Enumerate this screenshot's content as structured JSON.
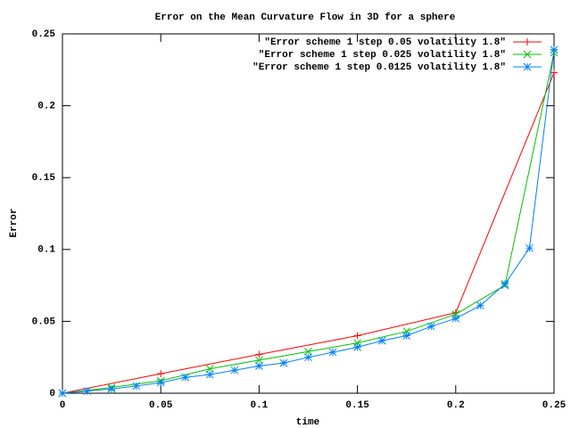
{
  "chart_data": {
    "type": "line",
    "title": "Error on the Mean Curvature Flow in  3D for a sphere",
    "x_label": "time",
    "y_label": "Error",
    "xlim": [
      0,
      0.25
    ],
    "ylim": [
      0,
      0.25
    ],
    "xticks": [
      0,
      0.05,
      0.1,
      0.15,
      0.2,
      0.25
    ],
    "yticks": [
      0,
      0.05,
      0.1,
      0.15,
      0.2,
      0.25
    ],
    "legend": "top-right",
    "series": [
      {
        "name": "\"Error scheme 1 step 0.05 volatility 1.8\"",
        "color": "#ff0000",
        "marker": "plus",
        "x": [
          0,
          0.05,
          0.1,
          0.15,
          0.2,
          0.25
        ],
        "values": [
          0,
          0.0136,
          0.027,
          0.04,
          0.056,
          0.223
        ]
      },
      {
        "name": "\"Error scheme 1 step 0.025 volatility 1.8\"",
        "color": "#00c000",
        "marker": "cross",
        "x": [
          0,
          0.025,
          0.05,
          0.075,
          0.1,
          0.125,
          0.15,
          0.175,
          0.2,
          0.225,
          0.25
        ],
        "values": [
          0,
          0.004,
          0.0087,
          0.017,
          0.023,
          0.029,
          0.035,
          0.043,
          0.055,
          0.075,
          0.237
        ]
      },
      {
        "name": "\"Error scheme 1 step 0.0125 volatility 1.8\"",
        "color": "#0080ff",
        "marker": "star",
        "x": [
          0,
          0.0125,
          0.025,
          0.0375,
          0.05,
          0.0625,
          0.075,
          0.0875,
          0.1,
          0.1125,
          0.125,
          0.1375,
          0.15,
          0.1625,
          0.175,
          0.1875,
          0.2,
          0.2125,
          0.225,
          0.2375,
          0.25
        ],
        "values": [
          0,
          0.0015,
          0.003,
          0.005,
          0.0074,
          0.011,
          0.013,
          0.016,
          0.019,
          0.021,
          0.025,
          0.0285,
          0.032,
          0.0365,
          0.04,
          0.0465,
          0.052,
          0.061,
          0.076,
          0.101,
          0.239
        ]
      }
    ]
  }
}
